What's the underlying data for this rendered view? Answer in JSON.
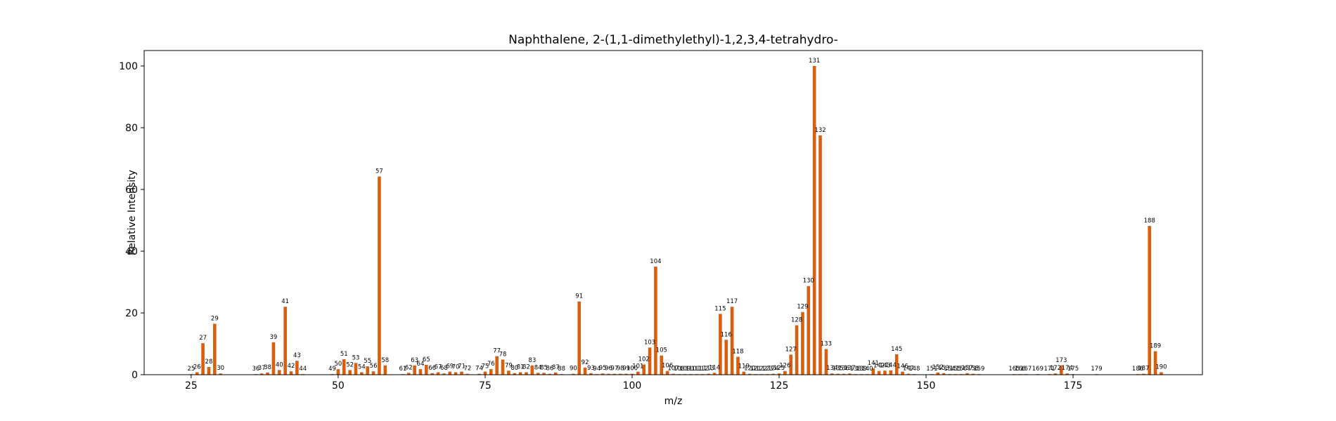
{
  "chart_data": {
    "type": "bar",
    "title": "Naphthalene, 2-(1,1-dimethylethyl)-1,2,3,4-tetrahydro-",
    "xlabel": "m/z",
    "ylabel": "Relative Intensity",
    "xlim": [
      17,
      197
    ],
    "ylim": [
      0,
      105
    ],
    "xticks": [
      25,
      50,
      75,
      100,
      125,
      150,
      175
    ],
    "yticks": [
      0,
      20,
      40,
      60,
      80,
      100
    ],
    "grid": false,
    "color": "#d95f0e",
    "points": [
      {
        "mz": 25,
        "intensity": 0.2
      },
      {
        "mz": 26,
        "intensity": 0.8
      },
      {
        "mz": 27,
        "intensity": 10.2
      },
      {
        "mz": 28,
        "intensity": 2.5
      },
      {
        "mz": 29,
        "intensity": 16.5
      },
      {
        "mz": 30,
        "intensity": 0.4
      },
      {
        "mz": 36,
        "intensity": 0.2
      },
      {
        "mz": 37,
        "intensity": 0.4
      },
      {
        "mz": 38,
        "intensity": 0.7
      },
      {
        "mz": 39,
        "intensity": 10.5
      },
      {
        "mz": 40,
        "intensity": 1.5
      },
      {
        "mz": 41,
        "intensity": 22.0
      },
      {
        "mz": 42,
        "intensity": 1.1
      },
      {
        "mz": 43,
        "intensity": 4.5
      },
      {
        "mz": 44,
        "intensity": 0.2
      },
      {
        "mz": 49,
        "intensity": 0.2
      },
      {
        "mz": 50,
        "intensity": 1.8
      },
      {
        "mz": 51,
        "intensity": 5.0
      },
      {
        "mz": 52,
        "intensity": 1.5
      },
      {
        "mz": 53,
        "intensity": 3.8
      },
      {
        "mz": 54,
        "intensity": 0.8
      },
      {
        "mz": 55,
        "intensity": 2.7
      },
      {
        "mz": 56,
        "intensity": 1.1
      },
      {
        "mz": 57,
        "intensity": 64.2
      },
      {
        "mz": 58,
        "intensity": 3.0
      },
      {
        "mz": 61,
        "intensity": 0.2
      },
      {
        "mz": 62,
        "intensity": 0.6
      },
      {
        "mz": 63,
        "intensity": 3.0
      },
      {
        "mz": 64,
        "intensity": 1.8
      },
      {
        "mz": 65,
        "intensity": 3.2
      },
      {
        "mz": 66,
        "intensity": 0.5
      },
      {
        "mz": 67,
        "intensity": 0.8
      },
      {
        "mz": 68,
        "intensity": 0.4
      },
      {
        "mz": 69,
        "intensity": 1.0
      },
      {
        "mz": 70,
        "intensity": 0.8
      },
      {
        "mz": 71,
        "intensity": 1.0
      },
      {
        "mz": 72,
        "intensity": 0.3
      },
      {
        "mz": 74,
        "intensity": 0.3
      },
      {
        "mz": 75,
        "intensity": 1.0
      },
      {
        "mz": 76,
        "intensity": 1.8
      },
      {
        "mz": 77,
        "intensity": 6.0
      },
      {
        "mz": 78,
        "intensity": 4.9
      },
      {
        "mz": 79,
        "intensity": 1.3
      },
      {
        "mz": 80,
        "intensity": 0.5
      },
      {
        "mz": 81,
        "intensity": 0.8
      },
      {
        "mz": 82,
        "intensity": 0.8
      },
      {
        "mz": 83,
        "intensity": 3.0
      },
      {
        "mz": 84,
        "intensity": 0.6
      },
      {
        "mz": 85,
        "intensity": 0.6
      },
      {
        "mz": 86,
        "intensity": 0.3
      },
      {
        "mz": 87,
        "intensity": 0.7
      },
      {
        "mz": 88,
        "intensity": 0.2
      },
      {
        "mz": 90,
        "intensity": 0.3
      },
      {
        "mz": 91,
        "intensity": 23.7
      },
      {
        "mz": 92,
        "intensity": 2.3
      },
      {
        "mz": 93,
        "intensity": 0.5
      },
      {
        "mz": 94,
        "intensity": 0.2
      },
      {
        "mz": 95,
        "intensity": 0.4
      },
      {
        "mz": 96,
        "intensity": 0.3
      },
      {
        "mz": 97,
        "intensity": 0.3
      },
      {
        "mz": 98,
        "intensity": 0.3
      },
      {
        "mz": 99,
        "intensity": 0.3
      },
      {
        "mz": 100,
        "intensity": 0.3
      },
      {
        "mz": 101,
        "intensity": 1.0
      },
      {
        "mz": 102,
        "intensity": 3.3
      },
      {
        "mz": 103,
        "intensity": 8.8
      },
      {
        "mz": 104,
        "intensity": 35.0
      },
      {
        "mz": 105,
        "intensity": 6.2
      },
      {
        "mz": 106,
        "intensity": 1.2
      },
      {
        "mz": 107,
        "intensity": 0.3
      },
      {
        "mz": 108,
        "intensity": 0.2
      },
      {
        "mz": 109,
        "intensity": 0.2
      },
      {
        "mz": 110,
        "intensity": 0.2
      },
      {
        "mz": 111,
        "intensity": 0.2
      },
      {
        "mz": 112,
        "intensity": 0.2
      },
      {
        "mz": 113,
        "intensity": 0.3
      },
      {
        "mz": 114,
        "intensity": 0.6
      },
      {
        "mz": 115,
        "intensity": 19.7
      },
      {
        "mz": 116,
        "intensity": 11.3
      },
      {
        "mz": 117,
        "intensity": 22.0
      },
      {
        "mz": 118,
        "intensity": 5.8
      },
      {
        "mz": 119,
        "intensity": 1.0
      },
      {
        "mz": 120,
        "intensity": 0.3
      },
      {
        "mz": 121,
        "intensity": 0.2
      },
      {
        "mz": 122,
        "intensity": 0.2
      },
      {
        "mz": 123,
        "intensity": 0.2
      },
      {
        "mz": 124,
        "intensity": 0.3
      },
      {
        "mz": 125,
        "intensity": 0.4
      },
      {
        "mz": 126,
        "intensity": 1.2
      },
      {
        "mz": 127,
        "intensity": 6.5
      },
      {
        "mz": 128,
        "intensity": 16.0
      },
      {
        "mz": 129,
        "intensity": 20.3
      },
      {
        "mz": 130,
        "intensity": 28.7
      },
      {
        "mz": 131,
        "intensity": 100.0
      },
      {
        "mz": 132,
        "intensity": 77.5
      },
      {
        "mz": 133,
        "intensity": 8.3
      },
      {
        "mz": 134,
        "intensity": 0.4
      },
      {
        "mz": 135,
        "intensity": 0.3
      },
      {
        "mz": 136,
        "intensity": 0.3
      },
      {
        "mz": 137,
        "intensity": 0.4
      },
      {
        "mz": 138,
        "intensity": 0.2
      },
      {
        "mz": 139,
        "intensity": 0.2
      },
      {
        "mz": 140,
        "intensity": 0.2
      },
      {
        "mz": 141,
        "intensity": 2.1
      },
      {
        "mz": 142,
        "intensity": 1.2
      },
      {
        "mz": 143,
        "intensity": 1.3
      },
      {
        "mz": 144,
        "intensity": 1.4
      },
      {
        "mz": 145,
        "intensity": 6.6
      },
      {
        "mz": 146,
        "intensity": 1.0
      },
      {
        "mz": 147,
        "intensity": 0.3
      },
      {
        "mz": 148,
        "intensity": 0.2
      },
      {
        "mz": 151,
        "intensity": 0.2
      },
      {
        "mz": 152,
        "intensity": 0.7
      },
      {
        "mz": 153,
        "intensity": 0.5
      },
      {
        "mz": 154,
        "intensity": 0.2
      },
      {
        "mz": 155,
        "intensity": 0.2
      },
      {
        "mz": 156,
        "intensity": 0.2
      },
      {
        "mz": 157,
        "intensity": 0.5
      },
      {
        "mz": 158,
        "intensity": 0.3
      },
      {
        "mz": 159,
        "intensity": 0.2
      },
      {
        "mz": 165,
        "intensity": 0.2
      },
      {
        "mz": 166,
        "intensity": 0.2
      },
      {
        "mz": 167,
        "intensity": 0.2
      },
      {
        "mz": 169,
        "intensity": 0.2
      },
      {
        "mz": 171,
        "intensity": 0.2
      },
      {
        "mz": 172,
        "intensity": 0.4
      },
      {
        "mz": 173,
        "intensity": 3.0
      },
      {
        "mz": 174,
        "intensity": 0.4
      },
      {
        "mz": 175,
        "intensity": 0.2
      },
      {
        "mz": 179,
        "intensity": 0.2
      },
      {
        "mz": 186,
        "intensity": 0.2
      },
      {
        "mz": 187,
        "intensity": 0.3
      },
      {
        "mz": 188,
        "intensity": 48.2
      },
      {
        "mz": 189,
        "intensity": 7.6
      },
      {
        "mz": 190,
        "intensity": 0.8
      }
    ]
  }
}
